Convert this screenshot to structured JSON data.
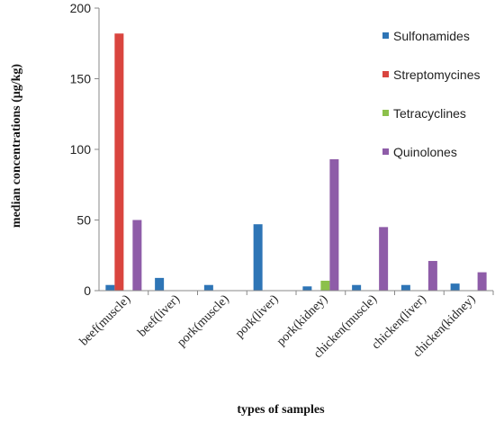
{
  "chart_data": {
    "type": "bar",
    "title": "",
    "xlabel": "types of samples",
    "ylabel": "median concentrations  (μg/kg)",
    "ylim": [
      0,
      200
    ],
    "yticks": [
      "0",
      "50",
      "100",
      "150",
      "200"
    ],
    "grid": false,
    "legend_position": "right",
    "categories": [
      "beef(muscle)",
      "beef(liver)",
      "pork(muscle)",
      "pork(liver)",
      "pork(kidney)",
      "chicken(muscle)",
      "chicken(liver)",
      "chicken(kidney)"
    ],
    "series": [
      {
        "name": "Sulfonamides",
        "color": "#2E75B6",
        "values": [
          4,
          9,
          4,
          47,
          3,
          4,
          4,
          5
        ]
      },
      {
        "name": "Streptomycines",
        "color": "#D9453F",
        "values": [
          182,
          0,
          0,
          0,
          0,
          0,
          0,
          0
        ]
      },
      {
        "name": "Tetracyclines",
        "color": "#8CC04B",
        "values": [
          0,
          0,
          0,
          0,
          7,
          0,
          0,
          0
        ]
      },
      {
        "name": "Quinolones",
        "color": "#8E5CA8",
        "values": [
          50,
          0,
          0,
          0,
          93,
          45,
          21,
          13
        ]
      }
    ]
  }
}
